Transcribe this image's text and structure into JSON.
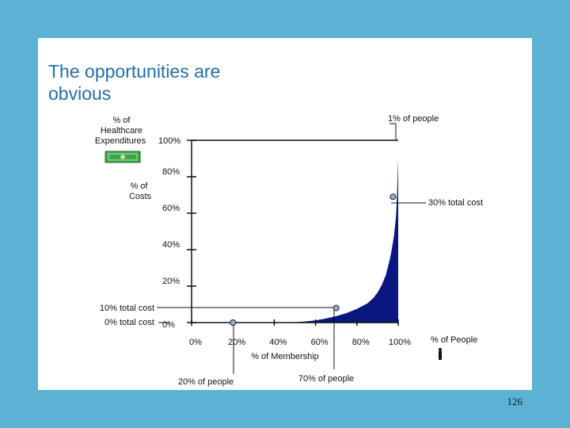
{
  "slide": {
    "title": "The opportunities are\nobvious",
    "page_number": "126"
  },
  "chart_data": {
    "type": "area",
    "x_axis": {
      "label": "% of Membership",
      "ticks": [
        "0%",
        "20%",
        "40%",
        "60%",
        "80%",
        "100%"
      ],
      "end_label": "% of People",
      "range": [
        0,
        100
      ]
    },
    "y_axis": {
      "top_label": "% of\nHealthcare\nExpenditures",
      "side_label": "% of\nCosts",
      "ticks": [
        "0%",
        "20%",
        "40%",
        "60%",
        "80%",
        "100%"
      ],
      "range": [
        0,
        100
      ]
    },
    "curve": {
      "x": [
        0,
        20,
        40,
        50,
        55,
        60,
        65,
        70,
        75,
        80,
        85,
        88,
        90,
        92,
        94,
        96,
        97,
        98,
        99,
        99.5,
        100
      ],
      "y": [
        0,
        0,
        0,
        0.2,
        0.6,
        1.2,
        2.2,
        3.5,
        5.2,
        7.5,
        10.5,
        13.5,
        16.5,
        20.5,
        26,
        35,
        41,
        48,
        59,
        72,
        90
      ]
    },
    "callouts": {
      "one_pct_people": "1% of people",
      "thirty_pct_cost": "30% total cost",
      "ten_pct_cost": "10% total cost",
      "zero_pct_cost": "0% total cost",
      "twenty_pct_people": "20% of people",
      "seventy_pct_people": "70% of people"
    },
    "markers": [
      {
        "x": 20,
        "y": 0
      },
      {
        "x": 70,
        "y": 8
      },
      {
        "x": 99,
        "y": 69
      }
    ],
    "colors": {
      "fill": "#0A1680",
      "marker": "#8FAFD2",
      "money_icon": "#3FA64A"
    },
    "icons": [
      "money-icon",
      "person-icon"
    ]
  }
}
